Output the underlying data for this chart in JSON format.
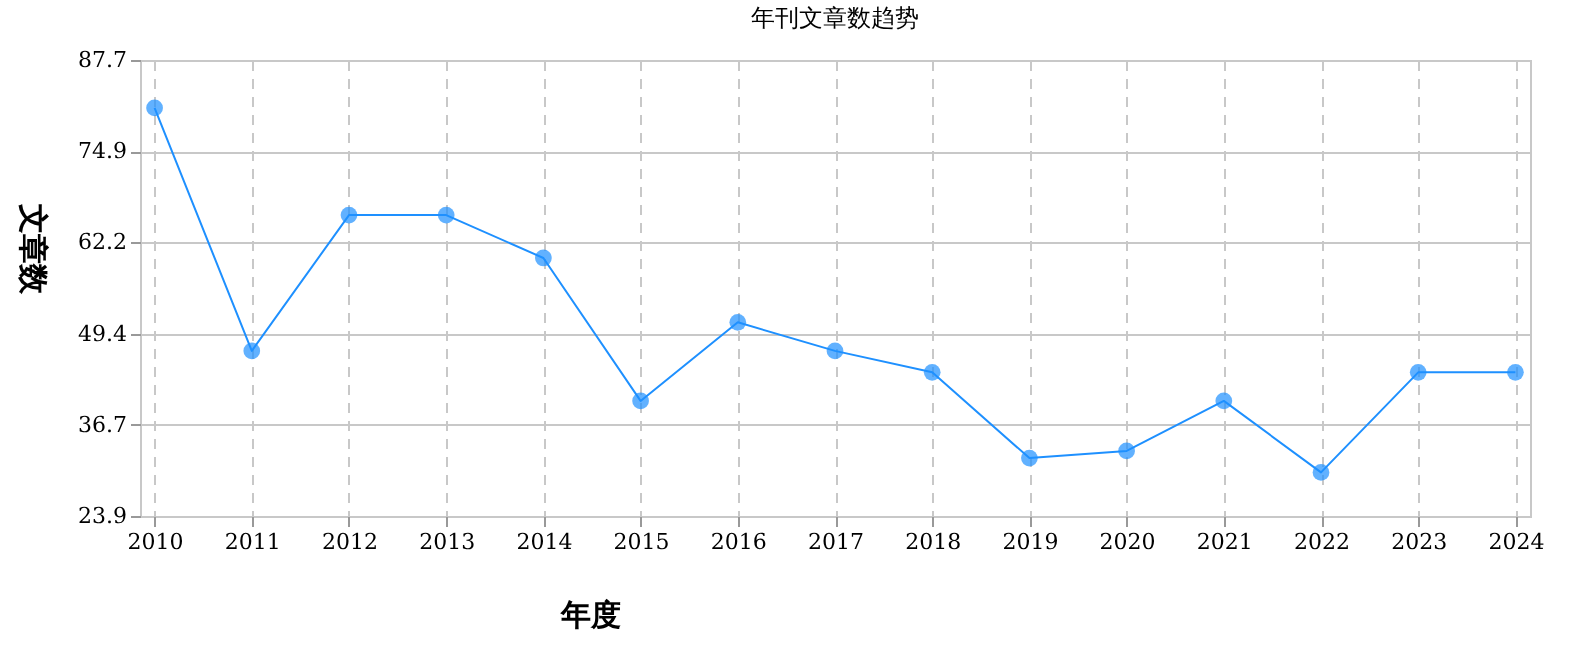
{
  "chart_data": {
    "type": "line",
    "title": "年刊文章数趋势",
    "xlabel": "年度",
    "ylabel": "文章数",
    "categories": [
      "2010",
      "2011",
      "2012",
      "2013",
      "2014",
      "2015",
      "2016",
      "2017",
      "2018",
      "2019",
      "2020",
      "2021",
      "2022",
      "2023",
      "2024"
    ],
    "series": [
      {
        "color": "#1e90ff",
        "values": [
          81,
          47,
          66,
          66,
          60,
          40,
          51,
          47,
          44,
          32,
          33,
          40,
          30,
          44,
          44
        ]
      }
    ],
    "ylim": [
      23.9,
      87.7
    ],
    "yticks": [
      23.9,
      36.7,
      49.4,
      62.2,
      74.9,
      87.7
    ],
    "grid": true,
    "marker": "circle",
    "line_style": "solid"
  }
}
